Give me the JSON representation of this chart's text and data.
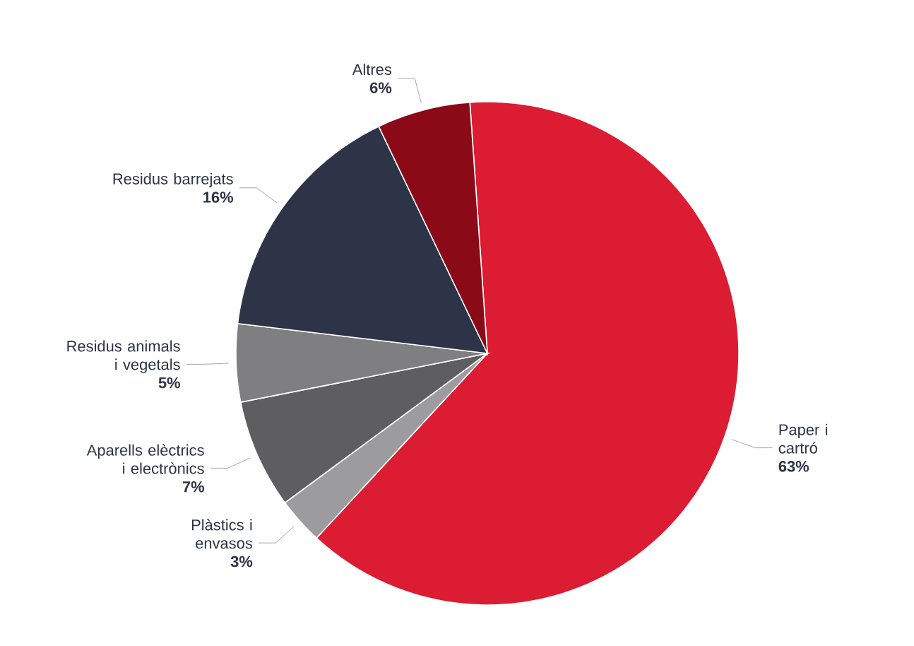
{
  "chart_data": {
    "type": "pie",
    "categories": [
      "Paper i cartró",
      "Plàstics i envasos",
      "Aparells elèctrics i electrònics",
      "Residus animals i vegetals",
      "Residus barrejats",
      "Altres"
    ],
    "values": [
      63,
      3,
      7,
      5,
      16,
      6
    ],
    "value_labels": [
      "63%",
      "3%",
      "7%",
      "5%",
      "16%",
      "6%"
    ],
    "colors": [
      "#dc1c32",
      "#9c9c9e",
      "#5e5e60",
      "#7f7f82",
      "#2d3447",
      "#8a0b17"
    ]
  }
}
